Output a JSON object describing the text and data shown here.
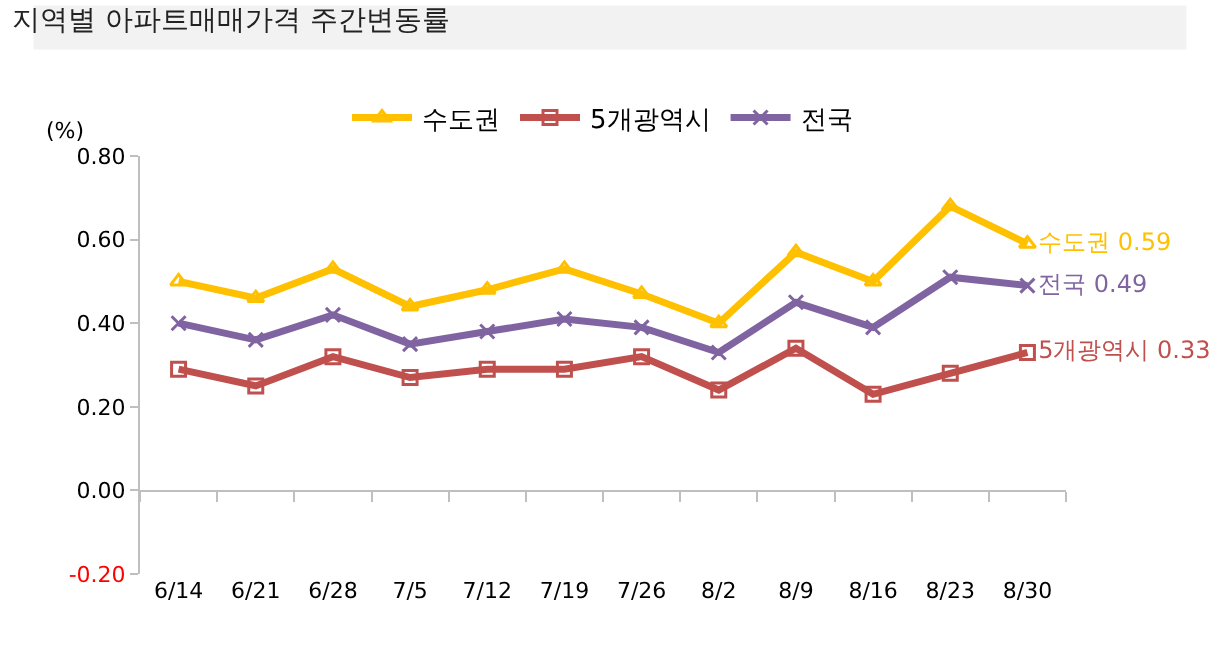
{
  "chart_data": {
    "type": "line",
    "title": "지역별 아파트매매가격 주간변동률",
    "ylabel": "(%)",
    "categories": [
      "6/14",
      "6/21",
      "6/28",
      "7/5",
      "7/12",
      "7/19",
      "7/26",
      "8/2",
      "8/9",
      "8/16",
      "8/23",
      "8/30"
    ],
    "series": [
      {
        "name": "수도권",
        "color": "#ffc000",
        "marker": "triangle",
        "values": [
          0.5,
          0.46,
          0.53,
          0.44,
          0.48,
          0.53,
          0.47,
          0.4,
          0.57,
          0.5,
          0.68,
          0.59
        ],
        "value_labels": [
          null,
          null,
          null,
          null,
          null,
          null,
          null,
          null,
          null,
          null,
          null,
          "수도권 0.59"
        ]
      },
      {
        "name": "5개광역시",
        "color": "#c0504d",
        "marker": "square",
        "values": [
          0.29,
          0.25,
          0.32,
          0.27,
          0.29,
          0.29,
          0.32,
          0.24,
          0.34,
          0.23,
          0.28,
          0.33
        ],
        "value_labels": [
          null,
          null,
          null,
          null,
          null,
          null,
          null,
          null,
          null,
          null,
          null,
          "5개광역시 0.33"
        ]
      },
      {
        "name": "전국",
        "color": "#8064a2",
        "marker": "cross",
        "values": [
          0.4,
          0.36,
          0.42,
          0.35,
          0.38,
          0.41,
          0.39,
          0.33,
          0.45,
          0.39,
          0.51,
          0.49
        ],
        "value_labels": [
          null,
          null,
          null,
          null,
          null,
          null,
          null,
          null,
          null,
          null,
          null,
          "전국 0.49"
        ]
      }
    ],
    "ylim": [
      -0.2,
      0.8
    ],
    "yticks": [
      {
        "value": -0.2,
        "label": "-0.20"
      },
      {
        "value": 0,
        "label": "0.00"
      },
      {
        "value": 0.2,
        "label": "0.20"
      },
      {
        "value": 0.4,
        "label": "0.40"
      },
      {
        "value": 0.6,
        "label": "0.60"
      },
      {
        "value": 0.8,
        "label": "0.80"
      }
    ],
    "legend": "top",
    "line_style": "solid"
  }
}
